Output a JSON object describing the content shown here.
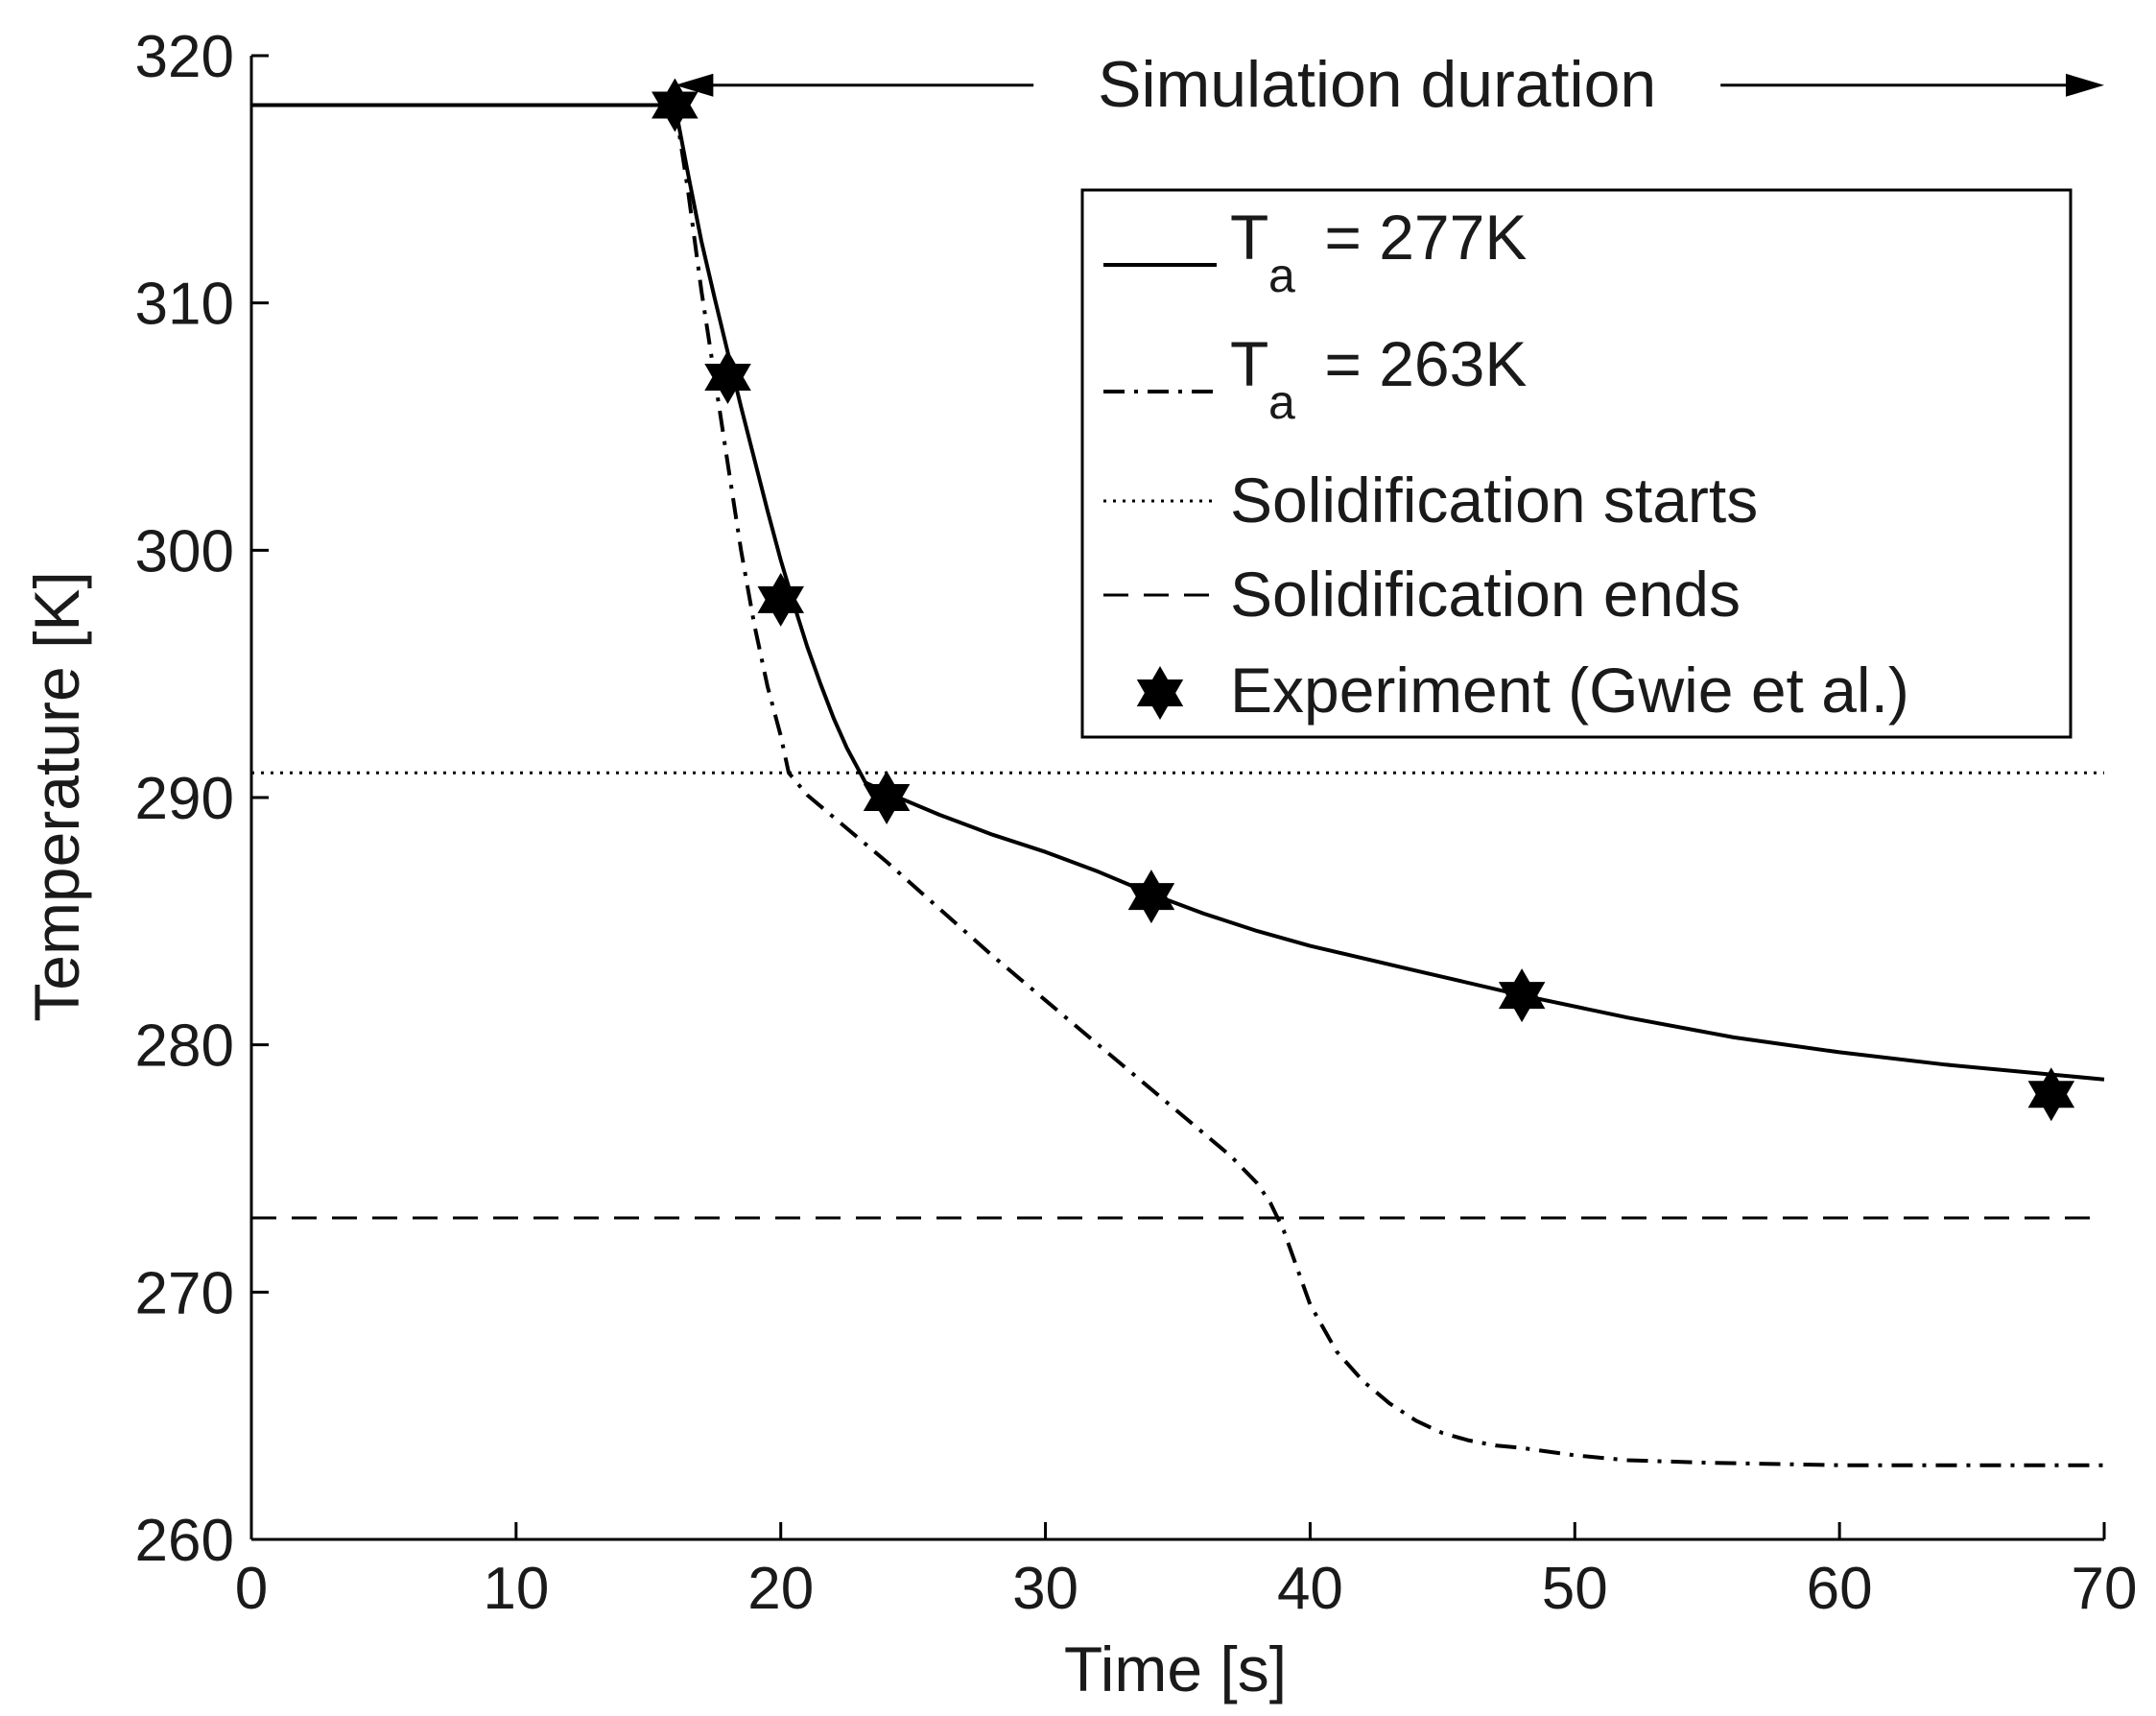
{
  "chart_data": {
    "type": "line",
    "xlabel": "Time [s]",
    "ylabel": "Temperature [K]",
    "xlim": [
      0,
      70
    ],
    "ylim": [
      260,
      320
    ],
    "xticks": [
      0,
      10,
      20,
      30,
      40,
      50,
      60,
      70
    ],
    "yticks": [
      260,
      270,
      280,
      290,
      300,
      310,
      320
    ],
    "grid": false,
    "legend_position": "top-right",
    "annotation": {
      "text": "Simulation duration",
      "from_x": 16,
      "to_x": 70,
      "y": 319
    },
    "series": [
      {
        "name": "T_a = 277K",
        "label_main": "T",
        "label_sub": "a",
        "label_rest": " = 277K",
        "style": "solid",
        "x": [
          0,
          16,
          16.5,
          17,
          17.5,
          18,
          18.5,
          19,
          19.5,
          20,
          20.5,
          21,
          21.5,
          22,
          22.5,
          23,
          23.2,
          24,
          26,
          28,
          30,
          32,
          34,
          36,
          38,
          40,
          44,
          48,
          52,
          56,
          60,
          64,
          68,
          70
        ],
        "y": [
          318,
          318,
          315.2,
          312.5,
          310.2,
          308.0,
          305.8,
          303.7,
          301.6,
          299.6,
          297.8,
          296.1,
          294.6,
          293.2,
          292.0,
          291.0,
          290.6,
          290.2,
          289.3,
          288.5,
          287.8,
          287.0,
          286.1,
          285.3,
          284.6,
          284.0,
          283.0,
          282.0,
          281.1,
          280.3,
          279.7,
          279.2,
          278.8,
          278.6
        ]
      },
      {
        "name": "T_a = 263K",
        "label_main": "T",
        "label_sub": "a",
        "label_rest": " = 263K",
        "style": "dashdot",
        "x": [
          16,
          16.5,
          17,
          17.5,
          18,
          18.5,
          19,
          19.5,
          20,
          20.3,
          21,
          22,
          24,
          26,
          28,
          30,
          32,
          34,
          36,
          37,
          38,
          38.5,
          39,
          39.5,
          40,
          41,
          42,
          43,
          44,
          45,
          46,
          47,
          48,
          50,
          52,
          55,
          60,
          65,
          70
        ],
        "y": [
          318,
          314.5,
          310.5,
          307,
          303.5,
          300,
          297,
          294.5,
          292.5,
          291.0,
          290.1,
          289.2,
          287.4,
          285.5,
          283.6,
          281.8,
          280.0,
          278.2,
          276.4,
          275.5,
          274.4,
          273.6,
          272.5,
          271.0,
          269.5,
          267.6,
          266.4,
          265.5,
          264.8,
          264.3,
          264.0,
          263.8,
          263.7,
          263.4,
          263.2,
          263.1,
          263.0,
          263.0,
          263.0
        ]
      },
      {
        "name": "Solidification starts",
        "style": "dotted",
        "x": [
          0,
          70
        ],
        "y": [
          291,
          291
        ]
      },
      {
        "name": "Solidification ends",
        "style": "dashed",
        "x": [
          0,
          70
        ],
        "y": [
          273,
          273
        ]
      },
      {
        "name": "Experiment (Gwie et al.)",
        "style": "star-markers",
        "x": [
          16,
          18,
          20,
          24,
          34,
          48,
          68
        ],
        "y": [
          318,
          307,
          298,
          290,
          286,
          282,
          278
        ]
      }
    ]
  }
}
